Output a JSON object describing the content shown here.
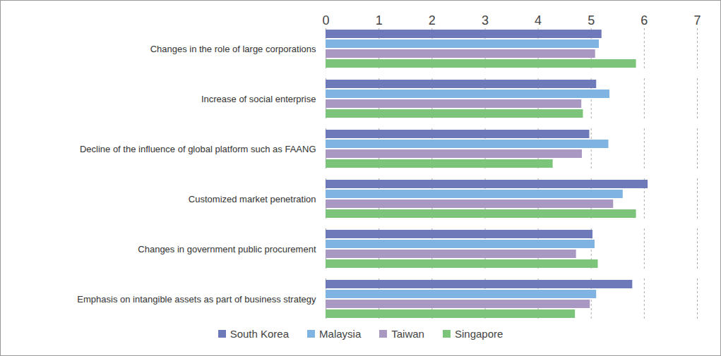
{
  "chart_data": {
    "type": "bar",
    "orientation": "horizontal",
    "categories": [
      "Changes in the role of large corporations",
      "Increase of social enterprise",
      "Decline of the influence of global platform such as FAANG",
      "Customized market penetration",
      "Changes in government public procurement",
      "Emphasis on intangible assets as part of business strategy"
    ],
    "series": [
      {
        "name": "South Korea",
        "color": "#6d79b9",
        "values": [
          5.2,
          5.1,
          4.97,
          6.07,
          5.03,
          5.78
        ]
      },
      {
        "name": "Malaysia",
        "color": "#7fb4e2",
        "values": [
          5.15,
          5.35,
          5.33,
          5.6,
          5.07,
          5.1
        ]
      },
      {
        "name": "Taiwan",
        "color": "#a998c2",
        "values": [
          5.08,
          4.82,
          4.83,
          5.42,
          4.72,
          4.98
        ]
      },
      {
        "name": "Singapore",
        "color": "#7cc47a",
        "values": [
          5.85,
          4.85,
          4.28,
          5.85,
          5.13,
          4.7
        ]
      }
    ],
    "xlim": [
      0,
      7
    ],
    "xticks": [
      0,
      1,
      2,
      3,
      4,
      5,
      6,
      7
    ],
    "grid": true,
    "legend": "bottom"
  }
}
